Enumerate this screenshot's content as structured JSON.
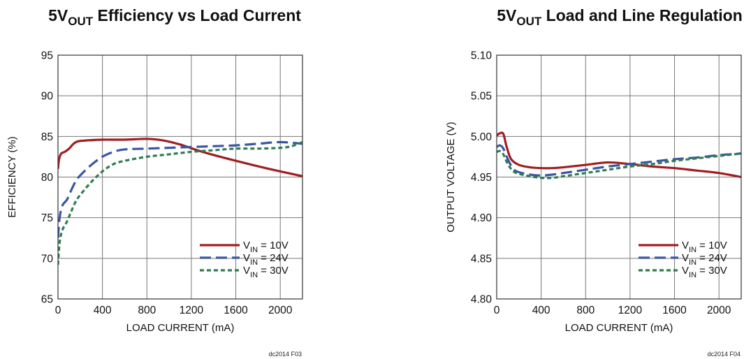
{
  "chart_data": [
    {
      "type": "line",
      "title": {
        "prefix": "5V",
        "sub": "OUT",
        "rest": " Efficiency vs Load Current"
      },
      "xlabel": "LOAD CURRENT (mA)",
      "ylabel": "EFFICIENCY (%)",
      "xlim": [
        0,
        2200
      ],
      "ylim": [
        65,
        95
      ],
      "xticks": [
        0,
        400,
        800,
        1200,
        1600,
        2000
      ],
      "yticks": [
        65,
        70,
        75,
        80,
        85,
        90,
        95
      ],
      "grid": true,
      "legend_position": "bottom-right",
      "footnote": "dc2014 F03",
      "series": [
        {
          "prefix": "V",
          "sub": "IN",
          "rest": " = 10V",
          "color": "#a01e22",
          "dash": "solid",
          "x": [
            0,
            10,
            30,
            60,
            100,
            140,
            180,
            250,
            400,
            600,
            800,
            950,
            1100,
            1300,
            1600,
            1900,
            2200
          ],
          "y": [
            81.0,
            82.2,
            82.9,
            83.1,
            83.5,
            84.1,
            84.4,
            84.5,
            84.6,
            84.6,
            84.7,
            84.5,
            84.0,
            83.1,
            82.0,
            81.0,
            80.1
          ]
        },
        {
          "prefix": "V",
          "sub": "IN",
          "rest": " = 24V",
          "color": "#3a56a3",
          "dash": "long",
          "x": [
            0,
            15,
            40,
            80,
            120,
            160,
            200,
            300,
            400,
            500,
            600,
            800,
            1000,
            1200,
            1400,
            1600,
            1800,
            2000,
            2200
          ],
          "y": [
            72.5,
            75.0,
            76.5,
            77.2,
            78.4,
            79.5,
            80.2,
            81.5,
            82.5,
            83.1,
            83.4,
            83.5,
            83.6,
            83.7,
            83.8,
            83.9,
            84.1,
            84.3,
            84.1
          ]
        },
        {
          "prefix": "V",
          "sub": "IN",
          "rest": " = 30V",
          "color": "#2e7d4f",
          "dash": "short",
          "x": [
            0,
            15,
            40,
            80,
            120,
            160,
            200,
            300,
            400,
            500,
            600,
            800,
            1000,
            1200,
            1400,
            1600,
            1800,
            2000,
            2100,
            2200
          ],
          "y": [
            69.2,
            72.0,
            73.5,
            74.5,
            75.8,
            77.0,
            77.8,
            79.4,
            80.7,
            81.6,
            82.0,
            82.5,
            82.8,
            83.1,
            83.3,
            83.5,
            83.5,
            83.6,
            83.8,
            84.3
          ]
        }
      ]
    },
    {
      "type": "line",
      "title": {
        "prefix": "5V",
        "sub": "OUT",
        "rest": " Load and Line Regulation"
      },
      "xlabel": "LOAD CURRENT (mA)",
      "ylabel": "OUTPUT VOLTAGE (V)",
      "xlim": [
        0,
        2200
      ],
      "ylim": [
        4.8,
        5.1
      ],
      "xticks": [
        0,
        400,
        800,
        1200,
        1600,
        2000
      ],
      "yticks": [
        4.8,
        4.85,
        4.9,
        4.95,
        5.0,
        5.05,
        5.1
      ],
      "grid": true,
      "legend_position": "bottom-right",
      "footnote": "dc2014 F04",
      "series": [
        {
          "prefix": "V",
          "sub": "IN",
          "rest": " = 10V",
          "color": "#a01e22",
          "dash": "solid",
          "x": [
            0,
            30,
            60,
            90,
            130,
            200,
            300,
            400,
            500,
            600,
            800,
            1000,
            1200,
            1400,
            1600,
            1800,
            2000,
            2200
          ],
          "y": [
            5.001,
            5.004,
            5.003,
            4.987,
            4.972,
            4.965,
            4.962,
            4.961,
            4.961,
            4.962,
            4.965,
            4.968,
            4.966,
            4.963,
            4.961,
            4.958,
            4.955,
            4.95
          ]
        },
        {
          "prefix": "V",
          "sub": "IN",
          "rest": " = 24V",
          "color": "#3a56a3",
          "dash": "long",
          "x": [
            0,
            30,
            60,
            100,
            150,
            200,
            300,
            400,
            500,
            600,
            800,
            1000,
            1200,
            1400,
            1600,
            1800,
            2000,
            2200
          ],
          "y": [
            4.987,
            4.989,
            4.985,
            4.972,
            4.96,
            4.956,
            4.953,
            4.952,
            4.953,
            4.955,
            4.959,
            4.963,
            4.966,
            4.969,
            4.972,
            4.974,
            4.977,
            4.979
          ]
        },
        {
          "prefix": "V",
          "sub": "IN",
          "rest": " = 30V",
          "color": "#2e7d4f",
          "dash": "short",
          "x": [
            0,
            30,
            60,
            100,
            150,
            200,
            300,
            400,
            500,
            600,
            800,
            1000,
            1200,
            1400,
            1600,
            1800,
            2000,
            2200
          ],
          "y": [
            4.981,
            4.982,
            4.978,
            4.966,
            4.957,
            4.954,
            4.951,
            4.949,
            4.949,
            4.951,
            4.955,
            4.959,
            4.963,
            4.966,
            4.97,
            4.973,
            4.976,
            4.979
          ]
        }
      ]
    }
  ]
}
